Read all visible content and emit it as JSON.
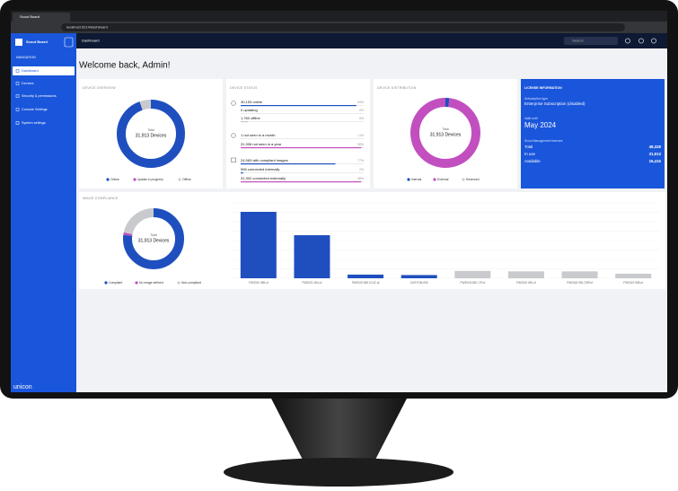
{
  "browser": {
    "tab": "Scout Board",
    "url": "localhost:3214/dashboard"
  },
  "sidebar": {
    "app": "Scout Board",
    "section": "NAVIGATION",
    "items": [
      "Dashboard",
      "Devices",
      "Security & permissions",
      "Console Settings",
      "System settings"
    ],
    "brand": "unicon"
  },
  "header": {
    "title": "Dashboard",
    "search": "Search"
  },
  "welcome": "Welcome back, Admin!",
  "device_overview": {
    "title": "DEVICE OVERVIEW",
    "center_top": "Total",
    "center": "31,913 Devices",
    "segments": [
      {
        "name": "Online",
        "color": "#1f4fbf",
        "value": 30153
      },
      {
        "name": "Update in progress",
        "color": "#c24fc0",
        "value": 0
      },
      {
        "name": "Offline",
        "color": "#c8cacd",
        "value": 1760
      }
    ]
  },
  "device_status": {
    "title": "DEVICE STATUS",
    "groups": [
      [
        {
          "label": "30,153 online",
          "pct_label": "94%",
          "pct": 94,
          "color": "#1f4fbf"
        },
        {
          "label": "0 updating",
          "pct_label": "0%",
          "pct": 0,
          "color": "#c24fc0"
        },
        {
          "label": "1,760 offline",
          "pct_label": "6%",
          "pct": 6,
          "color": "#c8cacd"
        }
      ],
      [
        {
          "label": "1 not seen in a month",
          "pct_label": "<1%",
          "pct": 0.1,
          "color": "#1f4fbf"
        },
        {
          "label": "31,306 not seen in a year",
          "pct_label": "98%",
          "pct": 98,
          "color": "#c24fc0"
        }
      ],
      [
        {
          "label": "24,563 with compliant images",
          "pct_label": "77%",
          "pct": 77,
          "color": "#1f4fbf"
        },
        {
          "label": "596 connected internally",
          "pct_label": "2%",
          "pct": 2,
          "color": "#1f4fbf"
        },
        {
          "label": "31,302 connected externally",
          "pct_label": "98%",
          "pct": 98,
          "color": "#c24fc0"
        }
      ]
    ]
  },
  "device_distribution": {
    "title": "DEVICE DISTRIBUTION",
    "center_top": "Total",
    "center": "31,913 Devices",
    "segments": [
      {
        "name": "Internal",
        "color": "#1f4fbf",
        "value": 596
      },
      {
        "name": "External",
        "color": "#c24fc0",
        "value": 31302
      },
      {
        "name": "Reserved",
        "color": "#c8cacd",
        "value": 15
      }
    ]
  },
  "license": {
    "title": "LICENSE INFORMATION",
    "sub_label": "Subscription type",
    "sub": "Enterprise Subscription (disabled)",
    "valid_label": "Valid until",
    "valid": "May 2024",
    "lic_label": "Scout Management licenses",
    "rows": [
      [
        "Total",
        "48,328"
      ],
      [
        "In use",
        "31,913"
      ],
      [
        "Available",
        "16,415"
      ]
    ]
  },
  "image_compliance": {
    "title": "IMAGE COMPLIANCE",
    "center_top": "Total",
    "center": "31,913 Devices",
    "segments": [
      {
        "name": "Compliant",
        "color": "#1f4fbf",
        "value": 24563
      },
      {
        "name": "No image defined",
        "color": "#c24fc0",
        "value": 400
      },
      {
        "name": "Non-compliant",
        "color": "#c8cacd",
        "value": 6950
      }
    ],
    "bars": {
      "categories": [
        "FW2020 085.uf",
        "FW2021 084.uf",
        "FW2020 085 10.02.uf",
        "CUSTOM.000",
        "FW2018 085 .CP.uf",
        "FW2019 081.uf",
        "FW2018 081.CBP.uf",
        "FW2019 085.uf"
      ],
      "values": [
        14500,
        9400,
        800,
        700,
        1600,
        1500,
        1500,
        1000
      ],
      "colors": [
        "#1f4fbf",
        "#1f4fbf",
        "#1f4fbf",
        "#1f4fbf",
        "#c8cacd",
        "#c8cacd",
        "#c8cacd",
        "#c8cacd"
      ]
    }
  }
}
